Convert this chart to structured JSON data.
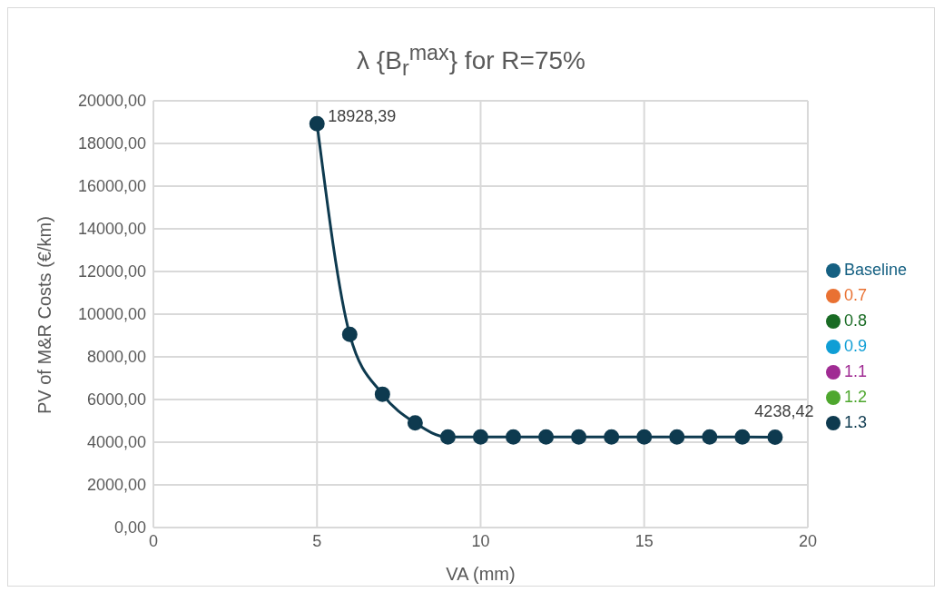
{
  "chart_data": {
    "type": "line",
    "title": "λ {B$_{r}$$^{max}$} for R=75%",
    "xlabel": "VA (mm)",
    "ylabel": "PV of M&R Costs (€/km)",
    "x": [
      5,
      6,
      7,
      8,
      9,
      10,
      11,
      12,
      13,
      14,
      15,
      16,
      17,
      18,
      19
    ],
    "series": [
      {
        "name": "Baseline",
        "color": "#156082",
        "values": [
          null,
          null,
          null,
          null,
          null,
          null,
          null,
          null,
          null,
          null,
          null,
          null,
          null,
          null,
          null
        ]
      },
      {
        "name": "0.7",
        "color": "#e97132",
        "values": [
          null,
          null,
          null,
          null,
          null,
          null,
          null,
          null,
          null,
          null,
          null,
          null,
          null,
          null,
          null
        ]
      },
      {
        "name": "0.8",
        "color": "#196b24",
        "values": [
          null,
          null,
          null,
          null,
          null,
          null,
          null,
          null,
          null,
          null,
          null,
          null,
          null,
          null,
          null
        ]
      },
      {
        "name": "0.9",
        "color": "#0f9ed5",
        "values": [
          null,
          null,
          null,
          null,
          null,
          null,
          null,
          null,
          null,
          null,
          null,
          null,
          null,
          null,
          null
        ]
      },
      {
        "name": "1.1",
        "color": "#a02b93",
        "values": [
          null,
          null,
          null,
          null,
          null,
          null,
          null,
          null,
          null,
          null,
          null,
          null,
          null,
          null,
          null
        ]
      },
      {
        "name": "1.2",
        "color": "#4ea72e",
        "values": [
          null,
          null,
          null,
          null,
          null,
          null,
          null,
          null,
          null,
          null,
          null,
          null,
          null,
          null,
          null
        ]
      },
      {
        "name": "1.3",
        "color": "#0e3a4f",
        "values": [
          18928.39,
          9050,
          6250,
          4900,
          4240,
          4240,
          4240,
          4240,
          4240,
          4240,
          4240,
          4240,
          4240,
          4240,
          4238.42
        ],
        "value_labels": [
          "18928,39",
          null,
          null,
          null,
          null,
          null,
          null,
          null,
          null,
          null,
          null,
          null,
          null,
          null,
          "4238,42"
        ]
      }
    ],
    "xlim": [
      0,
      20
    ],
    "xticks": [
      0,
      5,
      10,
      15,
      20
    ],
    "ylim": [
      0,
      20000
    ],
    "yticks": [
      {
        "value": 0,
        "label": "0,00"
      },
      {
        "value": 2000,
        "label": "2000,00"
      },
      {
        "value": 4000,
        "label": "4000,00"
      },
      {
        "value": 6000,
        "label": "6000,00"
      },
      {
        "value": 8000,
        "label": "8000,00"
      },
      {
        "value": 10000,
        "label": "10000,00"
      },
      {
        "value": 12000,
        "label": "12000,00"
      },
      {
        "value": 14000,
        "label": "14000,00"
      },
      {
        "value": 16000,
        "label": "16000,00"
      },
      {
        "value": 18000,
        "label": "18000,00"
      },
      {
        "value": 20000,
        "label": "20000,00"
      }
    ],
    "grid": true,
    "legend": "right",
    "marker": "circle",
    "line_style": "solid"
  }
}
